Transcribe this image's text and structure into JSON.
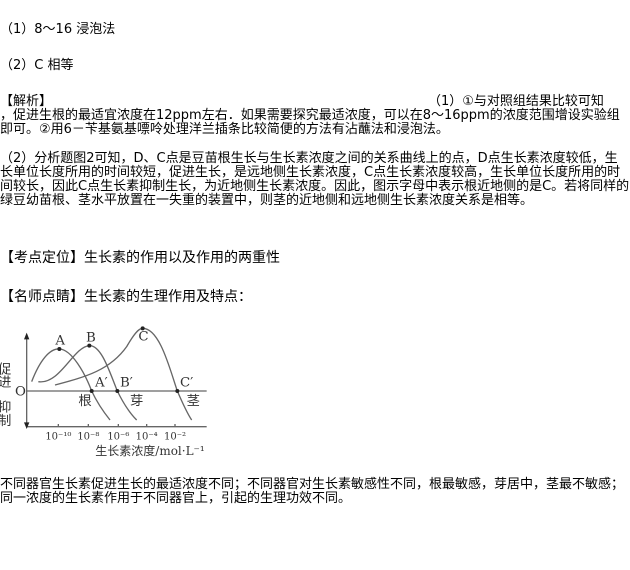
{
  "answers": {
    "a1": "（1）8～16 浸泡法",
    "a2": "（2）C 相等"
  },
  "analysis": {
    "label": "【解析】",
    "p1_head": "（1）①与对照组结果比较可知",
    "p1_body": "，促进生根的最适宜浓度在12ppm左右．如果需要探究最适浓度，可以在8～16ppm的浓度范围增设实验组即可。②用6－苄基氨基嘌呤处理洋兰插条比较简便的方法有沾蘸法和浸泡法。",
    "p2": "（2）分析题图2可知，D、C点是豆苗根生长与生长素浓度之间的关系曲线上的点，D点生长素浓度较低，生长单位长度所用的时间较短，促进生长，是远地侧生长素浓度，C点生长素浓度较高，生长单位长度所用的时间较长，因此C点生长素抑制生长，为近地侧生长素浓度。因此，图示字母中表示根近地侧的是C。若将同样的绿豆幼苗根、茎水平放置在一失重的装置中，则茎的近地侧和远地侧生长素浓度关系是相等。"
  },
  "kaodian": {
    "label": "【考点定位】",
    "text": "生长素的作用以及作用的两重性"
  },
  "mingshi": {
    "label": "【名师点睛】",
    "text": "生长素的生理作用及特点："
  },
  "figure": {
    "y_up": "促进",
    "y_down": "抑制",
    "zero": "O",
    "x_label": "生长素浓度/mol·L⁻¹",
    "x_ticks": [
      "10⁻¹⁰",
      "10⁻⁸",
      "10⁻⁶",
      "10⁻⁴",
      "10⁻²"
    ],
    "points": [
      "A",
      "B",
      "C",
      "A′",
      "B′",
      "C′"
    ],
    "organs": [
      "根",
      "芽",
      "茎"
    ]
  },
  "conclusion": "不同器官生长素促进生长的最适浓度不同；不同器官对生长素敏感性不同，根最敏感，芽居中，茎最不敏感；同一浓度的生长素作用于不同器官上，引起的生理功效不同。"
}
